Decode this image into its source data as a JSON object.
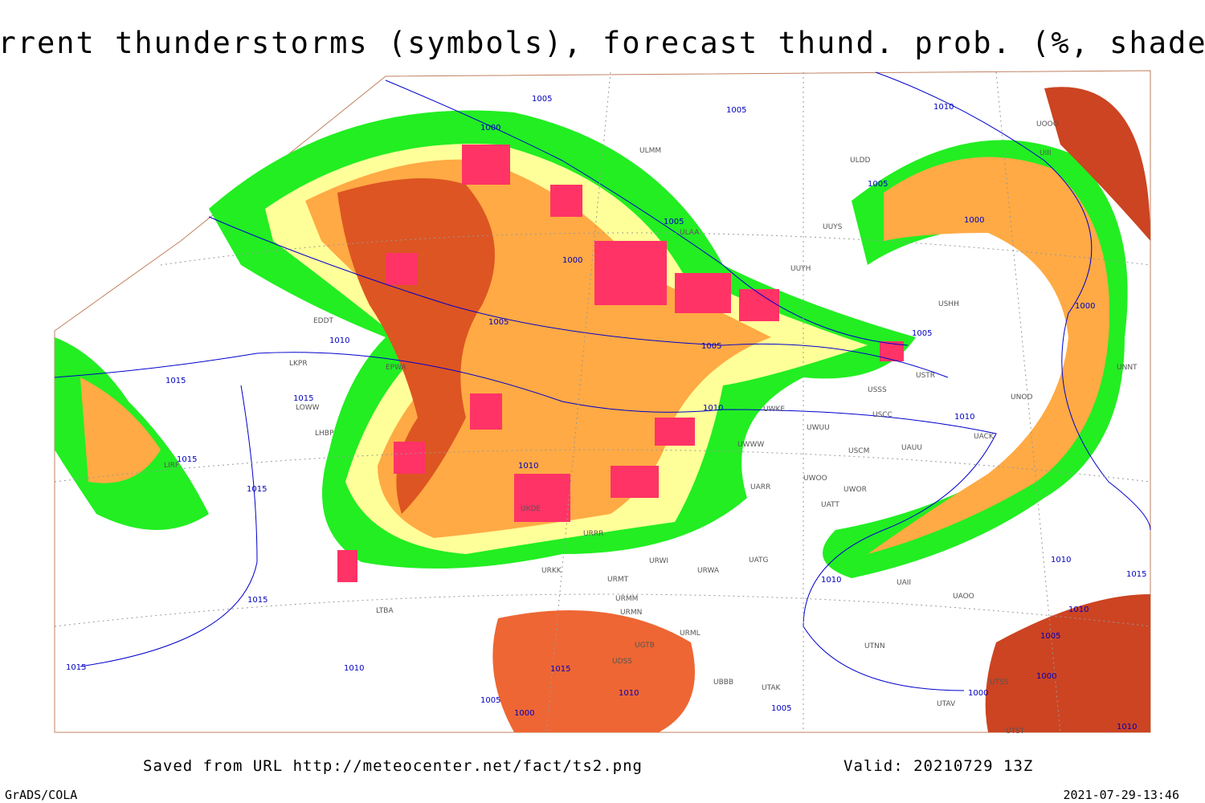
{
  "header": {
    "title": "Current thunderstorms (symbols), forecast thund. prob. (%, shaded)"
  },
  "footer": {
    "source": "Saved from URL http://meteocenter.net/fact/ts2.png",
    "valid": "Valid: 20210729 13Z",
    "credit": "GrADS/COLA",
    "timestamp": "2021-07-29-13:46"
  },
  "isobar_labels": [
    "1005",
    "1000",
    "1010",
    "1005",
    "1005",
    "1000",
    "1000",
    "1005",
    "1010",
    "1005",
    "1005",
    "1015",
    "1015",
    "1015",
    "1015",
    "1010",
    "1010",
    "1010",
    "1015",
    "1015",
    "1010",
    "1015",
    "1010",
    "1005",
    "1000",
    "1010",
    "1015",
    "1010",
    "1005",
    "1000",
    "1005",
    "1000",
    "1005",
    "1000",
    "1010",
    "1010"
  ],
  "station_labels": [
    "ULMM",
    "ULDD",
    "ULAA",
    "UUYS",
    "UUYH",
    "USHH",
    "UNOO",
    "USCC",
    "UACK",
    "USCM",
    "UAUU",
    "UWOO",
    "UWOR",
    "UATT",
    "UARR",
    "UWKE",
    "UWUU",
    "UWWW",
    "UATG",
    "URWA",
    "URWI",
    "URMT",
    "URMM",
    "URMN",
    "URML",
    "UBBB",
    "UTAK",
    "UTNN",
    "UTAV",
    "UTSS",
    "UTST",
    "UAOO",
    "UAII",
    "UNNT",
    "UIII",
    "UOOO",
    "USTR",
    "USSS",
    "LKPR",
    "LOWW",
    "LHBP",
    "LIRF",
    "EDDT",
    "EPWA",
    "UKDE",
    "URRR",
    "URKK",
    "LTBA",
    "UDSS",
    "UGTB"
  ]
}
